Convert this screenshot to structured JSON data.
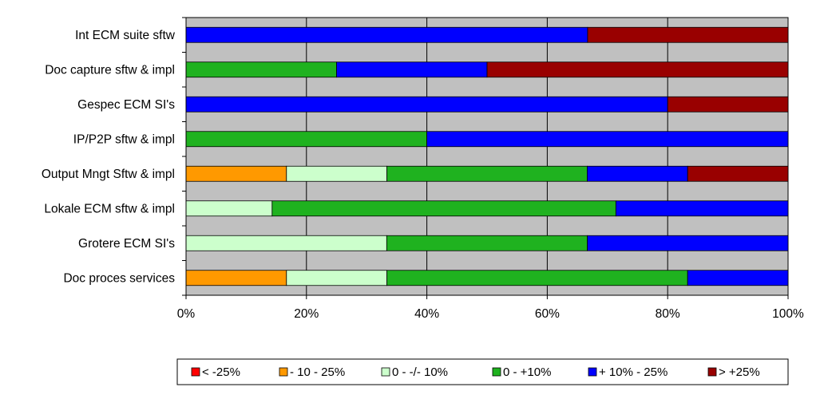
{
  "chart_data": {
    "type": "bar",
    "orientation": "horizontal",
    "stacked": "percent",
    "title": "",
    "xlabel": "",
    "ylabel": "",
    "xlim": [
      0,
      100
    ],
    "x_ticks": [
      "0%",
      "20%",
      "40%",
      "60%",
      "80%",
      "100%"
    ],
    "grid": true,
    "legend_position": "bottom",
    "categories": [
      "Int ECM suite sftw",
      "Doc capture sftw & impl",
      "Gespec ECM SI's",
      "IP/P2P sftw & impl",
      "Output Mngt Sftw & impl",
      "Lokale ECM sftw & impl",
      "Grotere ECM SI's",
      "Doc proces services"
    ],
    "series": [
      {
        "name": "< -25%",
        "color": "#ff0000",
        "values": [
          0,
          0,
          0,
          0,
          0,
          0,
          0,
          0
        ]
      },
      {
        "name": "- 10 - 25%",
        "color": "#ff9900",
        "values": [
          0,
          0,
          0,
          0,
          16.7,
          0,
          0,
          16.7
        ]
      },
      {
        "name": "0 - -/- 10%",
        "color": "#ccffcc",
        "values": [
          0,
          0,
          0,
          0,
          16.7,
          14.3,
          33.3,
          16.7
        ]
      },
      {
        "name": "0 - +10%",
        "color": "#1fb21f",
        "values": [
          0,
          25,
          0,
          40,
          33.3,
          57.1,
          33.3,
          50
        ]
      },
      {
        "name": "+ 10% - 25%",
        "color": "#0000ff",
        "values": [
          66.7,
          25,
          80,
          60,
          16.7,
          28.6,
          33.3,
          16.7
        ]
      },
      {
        "name": "> +25%",
        "color": "#990000",
        "values": [
          33.3,
          50,
          20,
          0,
          16.7,
          0,
          0,
          0
        ]
      }
    ],
    "plot_background": "#c0c0c0"
  }
}
